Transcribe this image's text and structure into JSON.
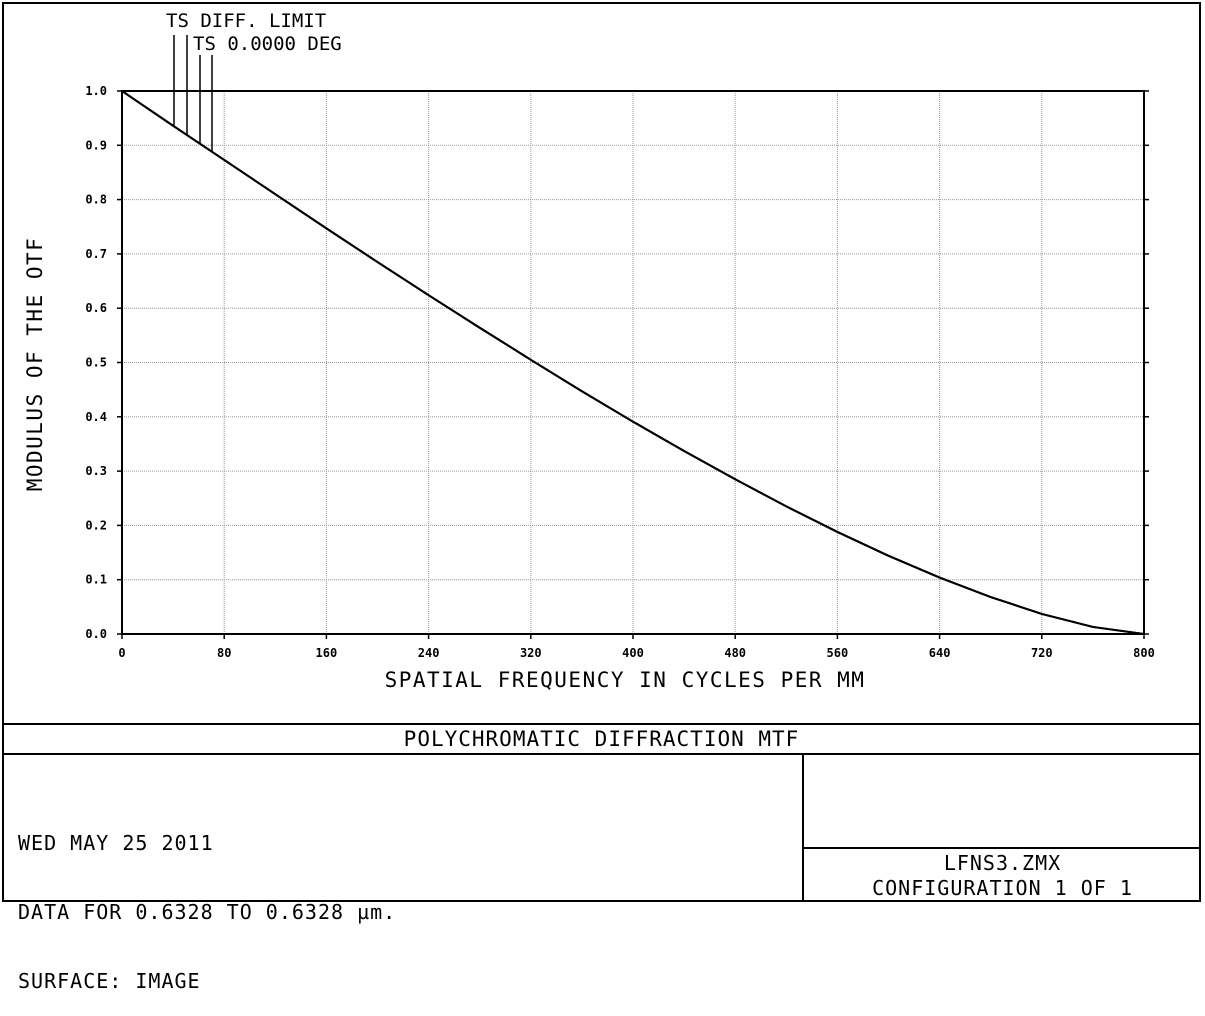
{
  "chart_data": {
    "type": "line",
    "title": "POLYCHROMATIC DIFFRACTION MTF",
    "xlabel": "SPATIAL FREQUENCY IN CYCLES PER MM",
    "ylabel": "MODULUS OF THE OTF",
    "xlim": [
      0,
      800
    ],
    "ylim": [
      0,
      1.0
    ],
    "x_ticks": [
      "0",
      "80",
      "160",
      "240",
      "320",
      "400",
      "480",
      "560",
      "640",
      "720",
      "800"
    ],
    "y_ticks": [
      "0.0",
      "0.1",
      "0.2",
      "0.3",
      "0.4",
      "0.5",
      "0.6",
      "0.7",
      "0.8",
      "0.9",
      "1.0"
    ],
    "grid": true,
    "legend": [
      "TS DIFF. LIMIT",
      "TS 0.0000 DEG"
    ],
    "series": [
      {
        "name": "TS DIFF. LIMIT",
        "x": [
          0,
          40,
          80,
          120,
          160,
          200,
          240,
          280,
          320,
          360,
          400,
          440,
          480,
          520,
          560,
          600,
          640,
          680,
          720,
          760,
          800
        ],
        "values": [
          1.0,
          0.936,
          0.873,
          0.81,
          0.747,
          0.685,
          0.624,
          0.564,
          0.505,
          0.447,
          0.391,
          0.337,
          0.285,
          0.235,
          0.188,
          0.144,
          0.104,
          0.068,
          0.037,
          0.013,
          0.0
        ]
      },
      {
        "name": "TS 0.0000 DEG",
        "x": [
          0,
          40,
          80,
          120,
          160,
          200,
          240,
          280,
          320,
          360,
          400,
          440,
          480,
          520,
          560,
          600,
          640,
          680,
          720,
          760,
          800
        ],
        "values": [
          1.0,
          0.936,
          0.873,
          0.81,
          0.747,
          0.685,
          0.624,
          0.564,
          0.505,
          0.447,
          0.391,
          0.337,
          0.285,
          0.235,
          0.188,
          0.144,
          0.104,
          0.068,
          0.037,
          0.013,
          0.0
        ]
      }
    ]
  },
  "info": {
    "date": "WED MAY 25 2011",
    "data_range": "DATA FOR 0.6328 TO 0.6328 µm.",
    "surface": "SURFACE: IMAGE",
    "filename": "LFNS3.ZMX",
    "configuration": "CONFIGURATION 1 OF 1"
  }
}
